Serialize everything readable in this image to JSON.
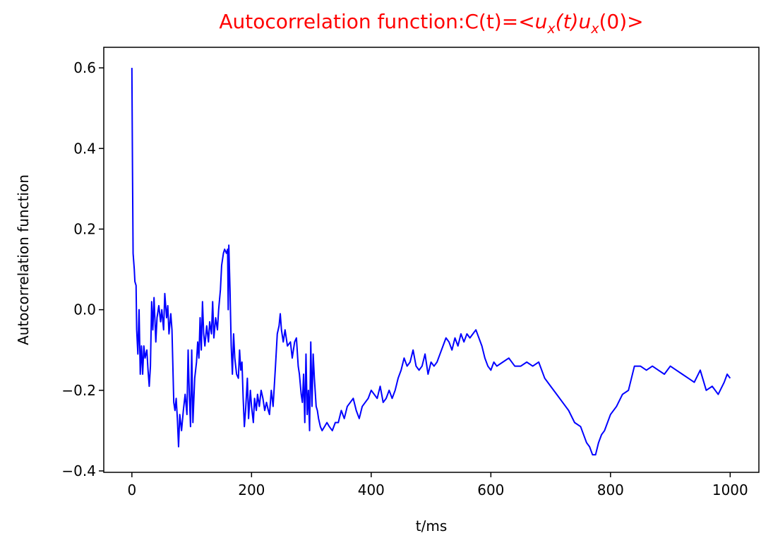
{
  "chart_data": {
    "type": "line",
    "title": [
      "Autocorrelation function:C(t)=<",
      "u",
      "x",
      "(t)",
      "u",
      "x",
      "(0)>"
    ],
    "xlabel": "t/ms",
    "ylabel": "Autocorrelation function",
    "xlim": [
      -47,
      1048
    ],
    "ylim": [
      -0.4035,
      0.651
    ],
    "xticks": [
      0,
      200,
      400,
      600,
      800,
      1000
    ],
    "yticks": [
      {
        "value": -0.4,
        "label": "−0.4"
      },
      {
        "value": -0.2,
        "label": "−0.2"
      },
      {
        "value": 0,
        "label": "0.0"
      },
      0.2,
      0.4,
      0.6
    ],
    "x": [
      0,
      1,
      2,
      4,
      5,
      7,
      8,
      10,
      12,
      14,
      16,
      18,
      20,
      22,
      25,
      27,
      29,
      31,
      33,
      35,
      37,
      40,
      42,
      45,
      48,
      50,
      53,
      55,
      58,
      60,
      62,
      65,
      67,
      70,
      72,
      74,
      76,
      78,
      80,
      83,
      86,
      89,
      92,
      94,
      96,
      98,
      100,
      102,
      105,
      108,
      110,
      112,
      114,
      116,
      118,
      120,
      122,
      125,
      128,
      130,
      133,
      135,
      137,
      140,
      143,
      145,
      148,
      150,
      153,
      155,
      158,
      160,
      161,
      162,
      164,
      166,
      168,
      170,
      172,
      175,
      178,
      180,
      182,
      184,
      186,
      188,
      190,
      193,
      195,
      198,
      200,
      203,
      205,
      208,
      210,
      213,
      216,
      219,
      222,
      225,
      228,
      230,
      233,
      236,
      240,
      243,
      246,
      248,
      250,
      253,
      256,
      260,
      265,
      268,
      272,
      275,
      278,
      280,
      283,
      285,
      287,
      289,
      291,
      293,
      295,
      297,
      299,
      301,
      303,
      305,
      308,
      310,
      312,
      315,
      318,
      322,
      326,
      330,
      335,
      340,
      345,
      350,
      355,
      360,
      365,
      370,
      375,
      380,
      385,
      390,
      395,
      400,
      405,
      410,
      415,
      420,
      425,
      430,
      435,
      440,
      445,
      450,
      455,
      460,
      465,
      470,
      475,
      480,
      485,
      490,
      495,
      500,
      505,
      510,
      515,
      520,
      525,
      530,
      535,
      540,
      545,
      550,
      555,
      560,
      565,
      570,
      575,
      580,
      585,
      590,
      595,
      600,
      605,
      610,
      620,
      630,
      640,
      650,
      660,
      670,
      680,
      690,
      700,
      710,
      720,
      730,
      740,
      750,
      760,
      765,
      770,
      775,
      780,
      785,
      790,
      800,
      810,
      820,
      830,
      840,
      850,
      860,
      870,
      880,
      890,
      900,
      910,
      920,
      930,
      940,
      950,
      960,
      970,
      980,
      990,
      995,
      1000
    ],
    "series": [
      {
        "color": "#0000ff",
        "values": [
          0.6,
          0.35,
          0.14,
          0.1,
          0.07,
          0.06,
          -0.05,
          -0.11,
          0.0,
          -0.16,
          -0.09,
          -0.16,
          -0.09,
          -0.12,
          -0.1,
          -0.15,
          -0.19,
          -0.14,
          0.02,
          -0.05,
          0.03,
          -0.08,
          -0.02,
          0.01,
          -0.03,
          0.0,
          -0.05,
          0.04,
          -0.02,
          0.01,
          -0.06,
          -0.01,
          -0.05,
          -0.23,
          -0.25,
          -0.22,
          -0.27,
          -0.34,
          -0.26,
          -0.3,
          -0.25,
          -0.21,
          -0.26,
          -0.1,
          -0.21,
          -0.29,
          -0.1,
          -0.28,
          -0.17,
          -0.13,
          -0.08,
          -0.12,
          -0.02,
          -0.1,
          0.02,
          -0.06,
          -0.09,
          -0.04,
          -0.08,
          -0.03,
          -0.06,
          0.02,
          -0.07,
          -0.02,
          -0.05,
          0.0,
          0.05,
          0.11,
          0.14,
          0.15,
          0.14,
          0.15,
          0.0,
          0.16,
          0.05,
          -0.09,
          -0.16,
          -0.06,
          -0.12,
          -0.16,
          -0.17,
          -0.1,
          -0.15,
          -0.13,
          -0.22,
          -0.29,
          -0.25,
          -0.17,
          -0.27,
          -0.2,
          -0.24,
          -0.28,
          -0.22,
          -0.25,
          -0.21,
          -0.24,
          -0.2,
          -0.22,
          -0.25,
          -0.23,
          -0.25,
          -0.26,
          -0.2,
          -0.24,
          -0.14,
          -0.06,
          -0.04,
          -0.01,
          -0.05,
          -0.08,
          -0.05,
          -0.09,
          -0.08,
          -0.12,
          -0.08,
          -0.07,
          -0.14,
          -0.16,
          -0.21,
          -0.23,
          -0.16,
          -0.28,
          -0.11,
          -0.26,
          -0.2,
          -0.3,
          -0.08,
          -0.24,
          -0.11,
          -0.17,
          -0.24,
          -0.25,
          -0.27,
          -0.29,
          -0.3,
          -0.29,
          -0.28,
          -0.29,
          -0.3,
          -0.28,
          -0.28,
          -0.25,
          -0.27,
          -0.24,
          -0.23,
          -0.22,
          -0.25,
          -0.27,
          -0.24,
          -0.23,
          -0.22,
          -0.2,
          -0.21,
          -0.22,
          -0.19,
          -0.23,
          -0.22,
          -0.2,
          -0.22,
          -0.2,
          -0.17,
          -0.15,
          -0.12,
          -0.14,
          -0.13,
          -0.1,
          -0.14,
          -0.15,
          -0.14,
          -0.11,
          -0.16,
          -0.13,
          -0.14,
          -0.13,
          -0.11,
          -0.09,
          -0.07,
          -0.08,
          -0.1,
          -0.07,
          -0.09,
          -0.06,
          -0.08,
          -0.06,
          -0.07,
          -0.06,
          -0.05,
          -0.07,
          -0.09,
          -0.12,
          -0.14,
          -0.15,
          -0.13,
          -0.14,
          -0.13,
          -0.12,
          -0.14,
          -0.14,
          -0.13,
          -0.14,
          -0.13,
          -0.17,
          -0.19,
          -0.21,
          -0.23,
          -0.25,
          -0.28,
          -0.29,
          -0.33,
          -0.34,
          -0.36,
          -0.36,
          -0.33,
          -0.31,
          -0.3,
          -0.26,
          -0.24,
          -0.21,
          -0.2,
          -0.14,
          -0.14,
          -0.15,
          -0.14,
          -0.15,
          -0.16,
          -0.14,
          -0.15,
          -0.16,
          -0.17,
          -0.18,
          -0.15,
          -0.2,
          -0.19,
          -0.21,
          -0.18,
          -0.16,
          -0.17
        ]
      }
    ]
  }
}
